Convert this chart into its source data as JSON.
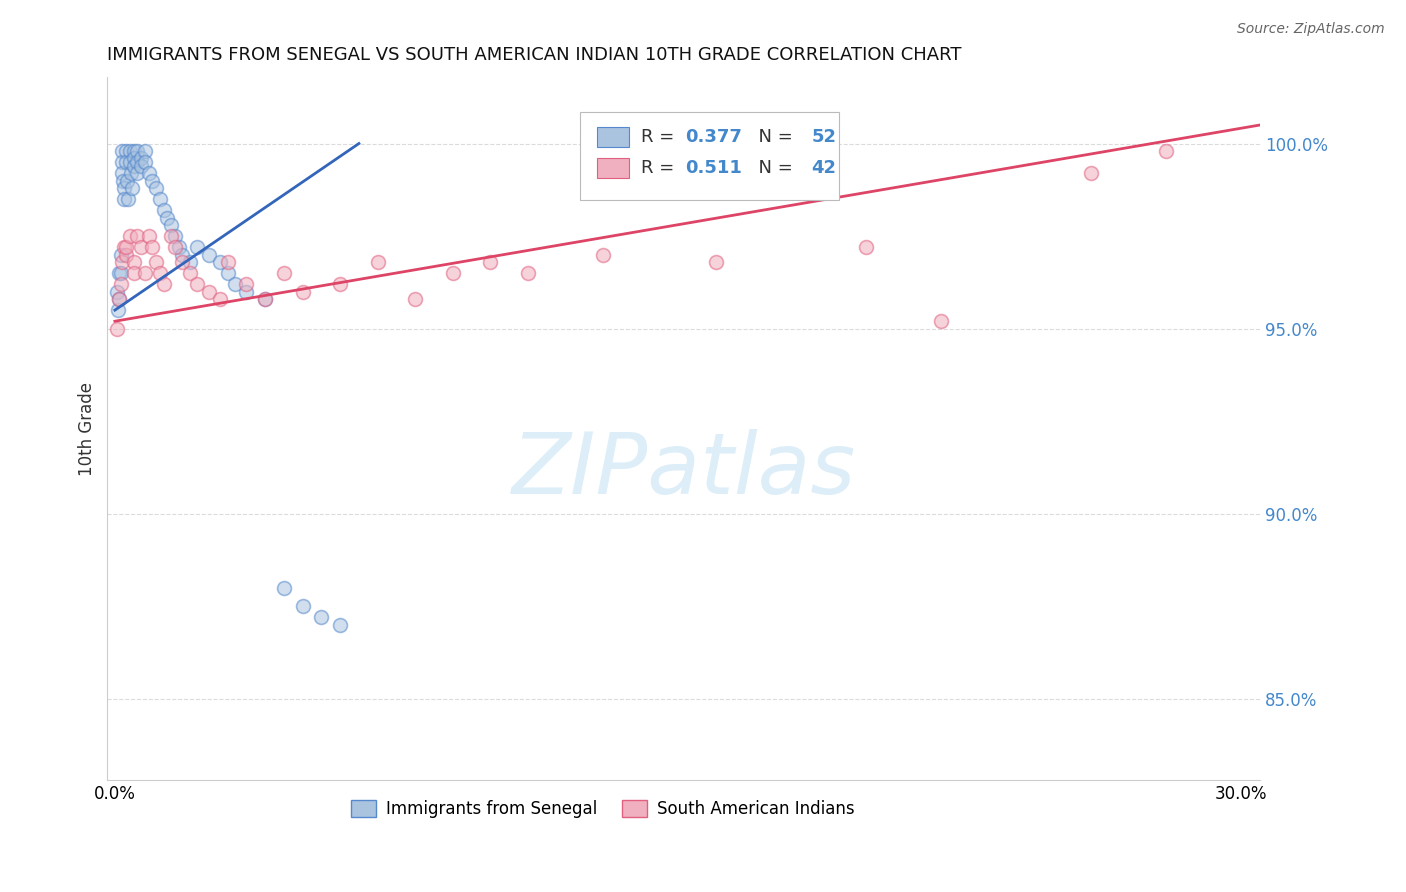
{
  "title": "IMMIGRANTS FROM SENEGAL VS SOUTH AMERICAN INDIAN 10TH GRADE CORRELATION CHART",
  "source": "Source: ZipAtlas.com",
  "ylabel": "10th Grade",
  "ytick_positions": [
    0.85,
    0.9,
    0.95,
    1.0
  ],
  "ytick_labels": [
    "85.0%",
    "90.0%",
    "95.0%",
    "100.0%"
  ],
  "xtick_positions": [
    0.0,
    0.3
  ],
  "xtick_labels": [
    "0.0%",
    "30.0%"
  ],
  "xlim": [
    -0.002,
    0.305
  ],
  "ylim": [
    0.828,
    1.018
  ],
  "blue_color": "#aac4e0",
  "pink_color": "#f0b0bf",
  "blue_edge_color": "#5588cc",
  "pink_edge_color": "#e06080",
  "blue_line_color": "#3366bb",
  "pink_line_color": "#dd4466",
  "background_color": "#ffffff",
  "watermark_text": "ZIPatlas",
  "watermark_color": "#ddeef8",
  "legend_label1": "Immigrants from Senegal",
  "legend_label2": "South American Indians",
  "senegal_x": [
    0.0005,
    0.0008,
    0.001,
    0.0012,
    0.0015,
    0.0015,
    0.002,
    0.002,
    0.002,
    0.0022,
    0.0025,
    0.0025,
    0.003,
    0.003,
    0.0032,
    0.0035,
    0.004,
    0.004,
    0.0042,
    0.0045,
    0.005,
    0.005,
    0.005,
    0.006,
    0.006,
    0.006,
    0.007,
    0.007,
    0.008,
    0.008,
    0.009,
    0.01,
    0.011,
    0.012,
    0.013,
    0.014,
    0.015,
    0.016,
    0.017,
    0.018,
    0.02,
    0.022,
    0.025,
    0.028,
    0.03,
    0.032,
    0.035,
    0.04,
    0.045,
    0.05,
    0.055,
    0.06
  ],
  "senegal_y": [
    0.96,
    0.955,
    0.965,
    0.958,
    0.97,
    0.965,
    0.998,
    0.995,
    0.992,
    0.99,
    0.988,
    0.985,
    0.998,
    0.995,
    0.99,
    0.985,
    0.998,
    0.995,
    0.992,
    0.988,
    0.998,
    0.996,
    0.994,
    0.998,
    0.995,
    0.992,
    0.996,
    0.994,
    0.998,
    0.995,
    0.992,
    0.99,
    0.988,
    0.985,
    0.982,
    0.98,
    0.978,
    0.975,
    0.972,
    0.97,
    0.968,
    0.972,
    0.97,
    0.968,
    0.965,
    0.962,
    0.96,
    0.958,
    0.88,
    0.875,
    0.872,
    0.87
  ],
  "indian_x": [
    0.0005,
    0.001,
    0.0015,
    0.002,
    0.0025,
    0.003,
    0.003,
    0.004,
    0.005,
    0.005,
    0.006,
    0.007,
    0.008,
    0.009,
    0.01,
    0.011,
    0.012,
    0.013,
    0.015,
    0.016,
    0.018,
    0.02,
    0.022,
    0.025,
    0.028,
    0.03,
    0.035,
    0.04,
    0.045,
    0.05,
    0.06,
    0.07,
    0.08,
    0.09,
    0.1,
    0.11,
    0.13,
    0.16,
    0.2,
    0.22,
    0.26,
    0.28
  ],
  "indian_y": [
    0.95,
    0.958,
    0.962,
    0.968,
    0.972,
    0.97,
    0.972,
    0.975,
    0.968,
    0.965,
    0.975,
    0.972,
    0.965,
    0.975,
    0.972,
    0.968,
    0.965,
    0.962,
    0.975,
    0.972,
    0.968,
    0.965,
    0.962,
    0.96,
    0.958,
    0.968,
    0.962,
    0.958,
    0.965,
    0.96,
    0.962,
    0.968,
    0.958,
    0.965,
    0.968,
    0.965,
    0.97,
    0.968,
    0.972,
    0.952,
    0.992,
    0.998
  ],
  "senegal_trend_x": [
    0.0,
    0.065
  ],
  "senegal_trend_y": [
    0.955,
    1.0
  ],
  "indian_trend_x": [
    0.0,
    0.305
  ],
  "indian_trend_y": [
    0.952,
    1.005
  ],
  "ytick_color": "#4488cc",
  "marker_size": 100,
  "marker_alpha": 0.55,
  "marker_linewidth": 1.2
}
